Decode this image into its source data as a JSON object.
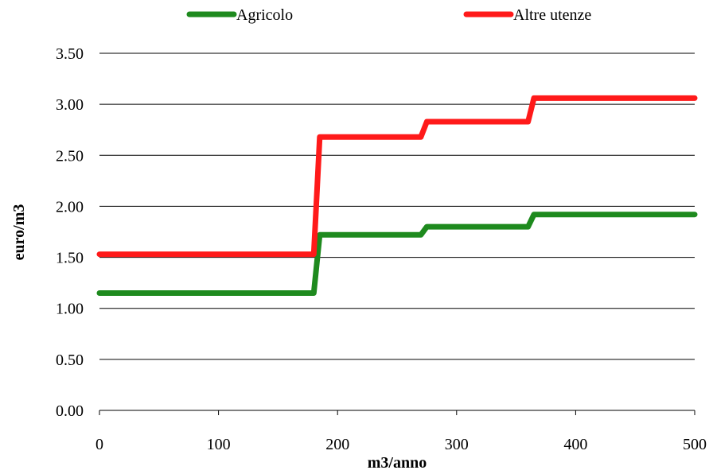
{
  "chart_data": {
    "type": "line",
    "xlabel": "m3/anno",
    "ylabel": "euro/m3",
    "xlim": [
      0,
      500
    ],
    "ylim": [
      0,
      3.5
    ],
    "xticks": [
      "0",
      "100",
      "200",
      "300",
      "400",
      "500"
    ],
    "yticks": [
      "0.00",
      "0.50",
      "1.00",
      "1.50",
      "2.00",
      "2.50",
      "3.00",
      "3.50"
    ],
    "grid": "horizontal",
    "legend_position": "top",
    "series": [
      {
        "name": "Agricolo",
        "color": "#1e8a1e",
        "points": [
          [
            0,
            1.15
          ],
          [
            180,
            1.15
          ],
          [
            185,
            1.72
          ],
          [
            270,
            1.72
          ],
          [
            275,
            1.8
          ],
          [
            360,
            1.8
          ],
          [
            365,
            1.92
          ],
          [
            500,
            1.92
          ]
        ]
      },
      {
        "name": "Altre utenze",
        "color": "#ff1a1a",
        "points": [
          [
            0,
            1.53
          ],
          [
            180,
            1.53
          ],
          [
            185,
            2.68
          ],
          [
            270,
            2.68
          ],
          [
            275,
            2.83
          ],
          [
            360,
            2.83
          ],
          [
            365,
            3.06
          ],
          [
            500,
            3.06
          ]
        ]
      }
    ]
  }
}
